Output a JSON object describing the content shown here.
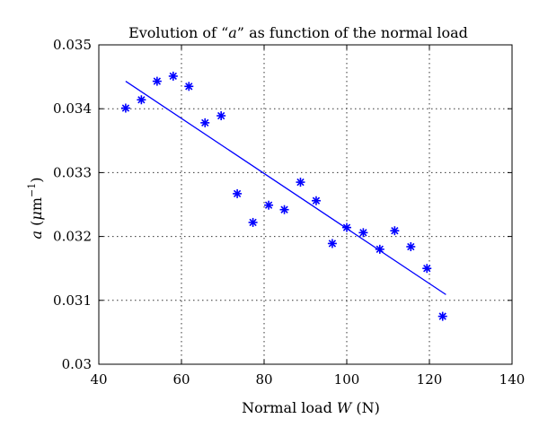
{
  "chart_data": {
    "type": "scatter",
    "title": "Evolution of “a” as function of the normal load",
    "title_parts": {
      "before": "Evolution of “",
      "symbol": "a",
      "after": "” as function of the normal load"
    },
    "xlabel": "Normal load W (N)",
    "xlabel_parts": {
      "text": "Normal load ",
      "symbol": "W",
      "unit": " (N)"
    },
    "ylabel": "a (μm⁻¹)",
    "ylabel_parts": {
      "symbol": "a",
      "unit_open": " (",
      "unit_mu": "μ",
      "unit_m": "m",
      "unit_exp": "−1",
      "unit_close": ")"
    },
    "xlim": [
      40,
      140
    ],
    "ylim": [
      0.03,
      0.035
    ],
    "xticks": [
      40,
      60,
      80,
      100,
      120,
      140
    ],
    "yticks": [
      0.03,
      0.031,
      0.032,
      0.033,
      0.034,
      0.035
    ],
    "xtick_labels": [
      "40",
      "60",
      "80",
      "100",
      "120",
      "140"
    ],
    "ytick_labels": [
      "0.03",
      "0.031",
      "0.032",
      "0.033",
      "0.034",
      "0.035"
    ],
    "grid": true,
    "series": [
      {
        "type": "scatter",
        "marker": "*",
        "color": "#0000ff",
        "x": [
          46.5,
          50.3,
          54.1,
          58.0,
          61.8,
          65.7,
          69.6,
          73.5,
          77.3,
          81.1,
          84.9,
          88.8,
          92.6,
          96.5,
          100.0,
          104.0,
          108.0,
          111.6,
          115.5,
          119.4,
          123.2
        ],
        "y": [
          0.03401,
          0.03414,
          0.03443,
          0.03451,
          0.03435,
          0.03378,
          0.03389,
          0.03267,
          0.03222,
          0.03249,
          0.03242,
          0.03285,
          0.03256,
          0.03189,
          0.03214,
          0.03206,
          0.0318,
          0.03209,
          0.03184,
          0.0315,
          0.03075
        ]
      },
      {
        "type": "line",
        "color": "#0000ff",
        "x": [
          46.5,
          124.0
        ],
        "y": [
          0.03443,
          0.03109
        ]
      }
    ]
  }
}
